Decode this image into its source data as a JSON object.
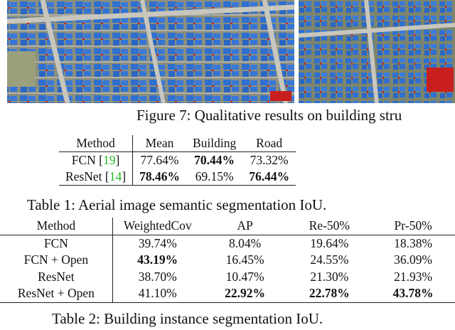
{
  "figure": {
    "caption": "Figure 7: Qualitative results on building stru"
  },
  "table1": {
    "headers": [
      "Method",
      "Mean",
      "Building",
      "Road"
    ],
    "rows": [
      {
        "method": "FCN [",
        "cite": "19",
        "close": "]",
        "mean": "77.64%",
        "building": "70.44%",
        "road": "73.32%"
      },
      {
        "method": "ResNet [",
        "cite": "14",
        "close": "]",
        "mean": "78.46%",
        "building": "69.15%",
        "road": "76.44%"
      }
    ],
    "caption": "Table 1: Aerial image semantic segmentation IoU."
  },
  "table2": {
    "headers": [
      "Method",
      "WeightedCov",
      "AP",
      "Re-50%",
      "Pr-50%"
    ],
    "rows": [
      [
        "FCN",
        "39.74%",
        "8.04%",
        "19.64%",
        "18.38%"
      ],
      [
        "FCN + Open",
        "43.19%",
        "16.45%",
        "24.55%",
        "36.09%"
      ],
      [
        "ResNet",
        "38.70%",
        "10.47%",
        "21.30%",
        "21.93%"
      ],
      [
        "ResNet + Open",
        "41.10%",
        "22.92%",
        "22.78%",
        "43.78%"
      ]
    ],
    "caption": "Table 2: Building instance segmentation IoU."
  },
  "colors": {
    "building_overlay": "#2f6fd0",
    "road_overlay": "#d02020",
    "citation": "#22b822"
  }
}
